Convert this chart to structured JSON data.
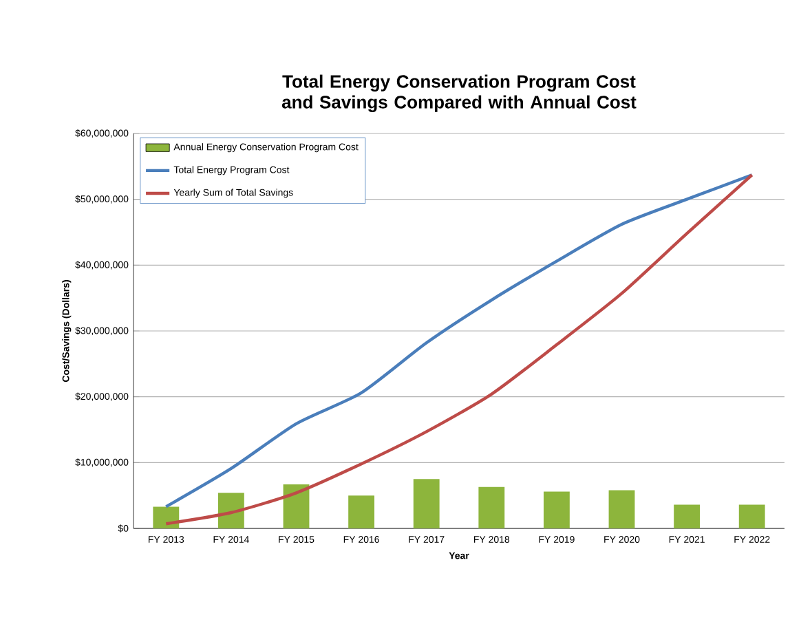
{
  "chart_data": {
    "type": "bar",
    "title": "Total Energy Conservation Program Cost and Savings Compared with Annual Cost",
    "xlabel": "Year",
    "ylabel": "Cost/Savings  (Dollars)",
    "categories": [
      "FY 2013",
      "FY 2014",
      "FY 2015",
      "FY 2016",
      "FY 2017",
      "FY 2018",
      "FY 2019",
      "FY 2020",
      "FY 2021",
      "FY 2022"
    ],
    "series": [
      {
        "name": "Annual Energy Conservation Program Cost",
        "color": "#8db53c",
        "values": [
          3300000,
          5400000,
          6700000,
          5000000,
          7500000,
          6300000,
          5600000,
          5800000,
          3600000,
          3600000
        ]
      },
      {
        "name": "Total Energy Program Cost",
        "type": "line",
        "color": "#4a7ebb",
        "values": [
          3300000,
          9100000,
          15900000,
          20600000,
          28200000,
          34700000,
          40600000,
          46200000,
          50000000,
          53700000
        ]
      },
      {
        "name": "Yearly Sum of Total Savings",
        "type": "line",
        "color": "#be4b48",
        "values": [
          700000,
          2400000,
          5400000,
          9800000,
          14700000,
          20400000,
          27900000,
          35700000,
          44800000,
          53700000
        ]
      }
    ],
    "ylim": [
      0,
      60000000
    ],
    "yticks": [
      {
        "value": 0,
        "label": "$0"
      },
      {
        "value": 10000000,
        "label": "$10,000,000"
      },
      {
        "value": 20000000,
        "label": "$20,000,000"
      },
      {
        "value": 30000000,
        "label": "$30,000,000"
      },
      {
        "value": 40000000,
        "label": "$40,000,000"
      },
      {
        "value": 50000000,
        "label": "$50,000,000"
      },
      {
        "value": 60000000,
        "label": "$60,000,000"
      }
    ],
    "grid": "y",
    "legend": "top left",
    "marker": "none",
    "line_style": "solid"
  }
}
